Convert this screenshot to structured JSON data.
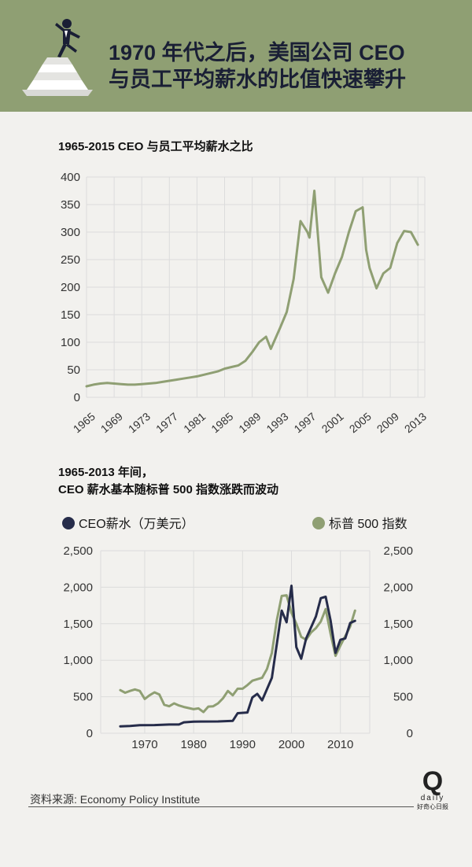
{
  "header": {
    "title_line1": "1970 年代之后，美国公司 CEO",
    "title_line2": "与员工平均薪水的比值快速攀升"
  },
  "chart1_title": "1965-2015 CEO 与员工平均薪水之比",
  "chart2_title_line1": "1965-2013 年间，",
  "chart2_title_line2": "CEO 薪水基本随标普 500 指数涨跌而波动",
  "colors": {
    "green": "#8f9f73",
    "navy": "#262c4a",
    "header_bg": "#8f9f73"
  },
  "chart_data": [
    {
      "type": "line",
      "title": "1965-2015 CEO 与员工平均薪水之比",
      "ylim": [
        0,
        400
      ],
      "yticks": [
        0,
        50,
        100,
        150,
        200,
        250,
        300,
        350,
        400
      ],
      "xticks": [
        1965,
        1969,
        1973,
        1977,
        1981,
        1985,
        1989,
        1993,
        1997,
        2001,
        2005,
        2009,
        2013
      ],
      "xlim": [
        1965,
        2014
      ],
      "grid": true,
      "series": [
        {
          "color": "#8f9f73",
          "points": [
            [
              1965,
              20
            ],
            [
              1966,
              23
            ],
            [
              1967,
              25
            ],
            [
              1968,
              26
            ],
            [
              1969,
              25
            ],
            [
              1970,
              24
            ],
            [
              1971,
              23
            ],
            [
              1972,
              23
            ],
            [
              1973,
              24
            ],
            [
              1974,
              25
            ],
            [
              1975,
              26
            ],
            [
              1976,
              28
            ],
            [
              1977,
              30
            ],
            [
              1978,
              32
            ],
            [
              1979,
              34
            ],
            [
              1980,
              36
            ],
            [
              1981,
              38
            ],
            [
              1982,
              41
            ],
            [
              1983,
              44
            ],
            [
              1984,
              47
            ],
            [
              1985,
              52
            ],
            [
              1986,
              55
            ],
            [
              1987,
              58
            ],
            [
              1988,
              66
            ],
            [
              1989,
              82
            ],
            [
              1990,
              100
            ],
            [
              1991,
              110
            ],
            [
              1991.7,
              88
            ],
            [
              1993,
              125
            ],
            [
              1994,
              155
            ],
            [
              1995,
              215
            ],
            [
              1996,
              320
            ],
            [
              1997,
              300
            ],
            [
              1997.3,
              290
            ],
            [
              1998,
              375
            ],
            [
              1999,
              218
            ],
            [
              2000,
              190
            ],
            [
              2001,
              225
            ],
            [
              2002,
              255
            ],
            [
              2003,
              300
            ],
            [
              2004,
              338
            ],
            [
              2005,
              345
            ],
            [
              2005.5,
              268
            ],
            [
              2006,
              235
            ],
            [
              2007,
              198
            ],
            [
              2008,
              225
            ],
            [
              2009,
              235
            ],
            [
              2010,
              280
            ],
            [
              2011,
              302
            ],
            [
              2012,
              300
            ],
            [
              2013,
              277
            ]
          ]
        }
      ]
    },
    {
      "type": "line",
      "title": "1965-2013 年间，CEO 薪水基本随标普 500 指数涨跌而波动",
      "ylim": [
        0,
        2500
      ],
      "yticks": [
        0,
        500,
        1000,
        1500,
        2000,
        2500
      ],
      "ytick_labels": [
        "0",
        "500",
        "1,000",
        "1,500",
        "2,000",
        "2,500"
      ],
      "xticks": [
        1970,
        1980,
        1990,
        2000,
        2010
      ],
      "xlim": [
        1961,
        2016
      ],
      "grid": true,
      "legend_position": "top",
      "series": [
        {
          "name": "CEO薪水（万美元）",
          "color": "#262c4a",
          "axis": "left",
          "points": [
            [
              1965,
              95
            ],
            [
              1967,
              100
            ],
            [
              1969,
              110
            ],
            [
              1972,
              112
            ],
            [
              1975,
              120
            ],
            [
              1977,
              120
            ],
            [
              1978,
              150
            ],
            [
              1980,
              160
            ],
            [
              1985,
              162
            ],
            [
              1988,
              170
            ],
            [
              1989,
              275
            ],
            [
              1991,
              285
            ],
            [
              1992,
              490
            ],
            [
              1993,
              540
            ],
            [
              1994,
              450
            ],
            [
              1996,
              760
            ],
            [
              1998,
              1680
            ],
            [
              1999,
              1520
            ],
            [
              2000,
              2020
            ],
            [
              2001,
              1180
            ],
            [
              2002,
              1020
            ],
            [
              2003,
              1300
            ],
            [
              2005,
              1600
            ],
            [
              2006,
              1850
            ],
            [
              2007,
              1870
            ],
            [
              2008,
              1540
            ],
            [
              2009,
              1100
            ],
            [
              2010,
              1280
            ],
            [
              2011,
              1300
            ],
            [
              2012,
              1510
            ],
            [
              2013,
              1540
            ]
          ]
        },
        {
          "name": "标普 500 指数",
          "color": "#8f9f73",
          "axis": "right",
          "points": [
            [
              1965,
              590
            ],
            [
              1966,
              555
            ],
            [
              1967,
              580
            ],
            [
              1968,
              600
            ],
            [
              1969,
              580
            ],
            [
              1970,
              470
            ],
            [
              1971,
              520
            ],
            [
              1972,
              560
            ],
            [
              1973,
              530
            ],
            [
              1974,
              390
            ],
            [
              1975,
              370
            ],
            [
              1976,
              410
            ],
            [
              1977,
              380
            ],
            [
              1978,
              360
            ],
            [
              1979,
              345
            ],
            [
              1980,
              330
            ],
            [
              1981,
              340
            ],
            [
              1982,
              290
            ],
            [
              1983,
              365
            ],
            [
              1984,
              370
            ],
            [
              1985,
              410
            ],
            [
              1986,
              480
            ],
            [
              1987,
              580
            ],
            [
              1988,
              520
            ],
            [
              1989,
              610
            ],
            [
              1990,
              610
            ],
            [
              1991,
              660
            ],
            [
              1992,
              720
            ],
            [
              1993,
              740
            ],
            [
              1994,
              760
            ],
            [
              1995,
              880
            ],
            [
              1996,
              1100
            ],
            [
              1997,
              1550
            ],
            [
              1998,
              1880
            ],
            [
              1999,
              1890
            ],
            [
              2000,
              1650
            ],
            [
              2001,
              1500
            ],
            [
              2002,
              1320
            ],
            [
              2003,
              1280
            ],
            [
              2004,
              1380
            ],
            [
              2005,
              1440
            ],
            [
              2006,
              1530
            ],
            [
              2007,
              1700
            ],
            [
              2008,
              1360
            ],
            [
              2009,
              1060
            ],
            [
              2010,
              1200
            ],
            [
              2011,
              1330
            ],
            [
              2012,
              1460
            ],
            [
              2013,
              1680
            ]
          ]
        }
      ]
    }
  ],
  "legend": {
    "ceo_label": "CEO薪水（万美元）",
    "sp_label": "标普 500 指数"
  },
  "source": "资料来源: Economy Policy Institute",
  "logo": {
    "mark": "Q",
    "word": "daily",
    "cn": "好奇心日报"
  }
}
